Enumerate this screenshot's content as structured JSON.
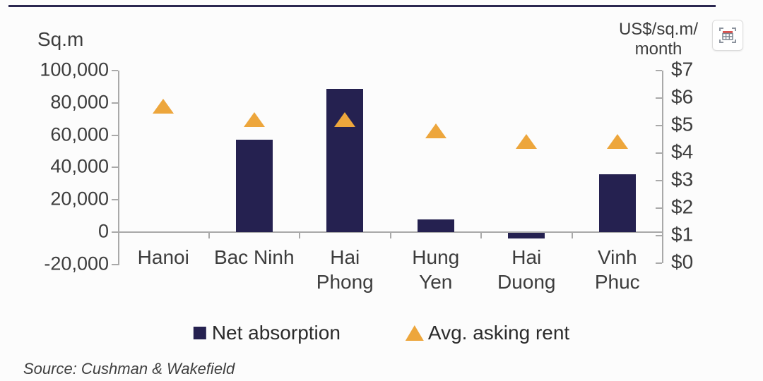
{
  "window": {
    "background": "#fcfcfc",
    "top_rule_color": "#2b2750"
  },
  "toolbar": {
    "capture_button": {
      "icon": "table-capture-icon"
    }
  },
  "chart_data": {
    "type": "combo-bar-scatter",
    "categories": [
      "Hanoi",
      "Bac Ninh",
      "Hai Phong",
      "Hung Yen",
      "Hai Duong",
      "Vinh Phuc"
    ],
    "category_lines": [
      [
        "Hanoi"
      ],
      [
        "Bac Ninh"
      ],
      [
        "Hai",
        "Phong"
      ],
      [
        "Hung",
        "Yen"
      ],
      [
        "Hai",
        "Duong"
      ],
      [
        "Vinh",
        "Phuc"
      ]
    ],
    "series": [
      {
        "name": "Net absorption",
        "type": "bar",
        "axis": "left",
        "unit": "sq.m",
        "color": "#252150",
        "values": [
          0,
          57000,
          88500,
          8000,
          -3500,
          36000
        ]
      },
      {
        "name": "Avg. asking rent",
        "type": "scatter",
        "marker": "triangle",
        "axis": "right",
        "unit": "US$/sq.m/month",
        "color": "#eda63c",
        "values": [
          5.7,
          5.2,
          5.2,
          4.8,
          4.4,
          4.4
        ]
      }
    ],
    "left_axis": {
      "title": "Sq.m",
      "min": -20000,
      "max": 100000,
      "step": 20000,
      "ticks": [
        {
          "label": "100,000",
          "value": 100000
        },
        {
          "label": "80,000",
          "value": 80000
        },
        {
          "label": "60,000",
          "value": 60000
        },
        {
          "label": "40,000",
          "value": 40000
        },
        {
          "label": "20,000",
          "value": 20000
        },
        {
          "label": "0",
          "value": 0
        },
        {
          "label": "-20,000",
          "value": -20000
        }
      ]
    },
    "right_axis": {
      "title_line1": "US$/sq.m/",
      "title_line2": "month",
      "min": 0,
      "max": 7,
      "step": 1,
      "ticks": [
        {
          "label": "$7",
          "value": 7
        },
        {
          "label": "$6",
          "value": 6
        },
        {
          "label": "$5",
          "value": 5
        },
        {
          "label": "$4",
          "value": 4
        },
        {
          "label": "$3",
          "value": 3
        },
        {
          "label": "$2",
          "value": 2
        },
        {
          "label": "$1",
          "value": 1
        },
        {
          "label": "$0",
          "value": 0
        }
      ]
    },
    "grid": false,
    "legend_position": "bottom"
  },
  "source": {
    "text": "Source: Cushman & Wakefield"
  }
}
